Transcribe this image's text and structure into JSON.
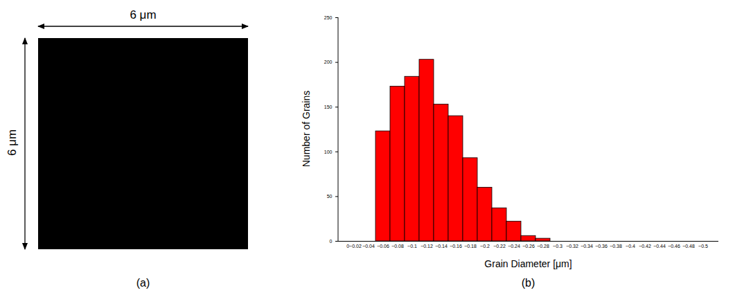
{
  "image_panel": {
    "panel_label": "(a)",
    "width_label": "6 μm",
    "height_label": "6 μm"
  },
  "chart_data": {
    "type": "bar",
    "panel_label": "(b)",
    "x_label": "Grain Diameter [μm]",
    "y_label": "Number of Grains",
    "categories": [
      "0~0.02",
      "~0.04",
      "~0.06",
      "~0.08",
      "~0.1",
      "~0.12",
      "~0.14",
      "~0.16",
      "~0.18",
      "~0.2",
      "~0.22",
      "~0.24",
      "~0.26",
      "~0.28",
      "~0.3",
      "~0.32",
      "~0.34",
      "~0.36",
      "~0.38",
      "~0.4",
      "~0.42",
      "~0.44",
      "~0.46",
      "~0.48",
      "~0.5"
    ],
    "values": [
      0,
      0,
      123,
      173,
      184,
      203,
      153,
      140,
      93,
      60,
      37,
      22,
      6,
      3,
      0,
      0,
      0,
      0,
      0,
      0,
      0,
      0,
      0,
      0,
      0
    ],
    "color": "#ff0000",
    "ylim": [
      0,
      250
    ],
    "yticks": [
      0,
      50,
      100,
      150,
      200,
      250
    ],
    "grid": false
  }
}
